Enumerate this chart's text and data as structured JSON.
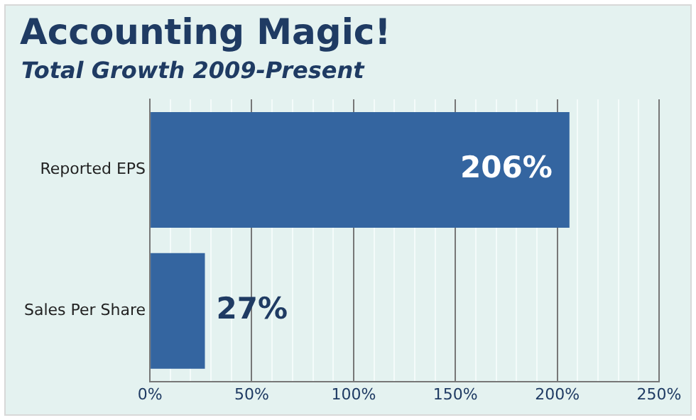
{
  "chart_data": {
    "type": "bar",
    "title": "Accounting Magic!",
    "subtitle": "Total Growth 2009-Present",
    "orientation": "horizontal",
    "categories": [
      "Reported EPS",
      "Sales Per Share"
    ],
    "values": [
      206,
      27
    ],
    "color": "#3465a0",
    "value_labels": [
      "206%",
      "27%"
    ],
    "xlim": [
      0,
      250
    ],
    "xticks": [
      {
        "value": 0,
        "label": "0%"
      },
      {
        "value": 10,
        "label": null
      },
      {
        "value": 20,
        "label": null
      },
      {
        "value": 30,
        "label": null
      },
      {
        "value": 40,
        "label": null
      },
      {
        "value": 50,
        "label": "50%"
      },
      {
        "value": 60,
        "label": null
      },
      {
        "value": 70,
        "label": null
      },
      {
        "value": 80,
        "label": null
      },
      {
        "value": 90,
        "label": null
      },
      {
        "value": 100,
        "label": "100%"
      },
      {
        "value": 110,
        "label": null
      },
      {
        "value": 120,
        "label": null
      },
      {
        "value": 130,
        "label": null
      },
      {
        "value": 140,
        "label": null
      },
      {
        "value": 150,
        "label": "150%"
      },
      {
        "value": 160,
        "label": null
      },
      {
        "value": 170,
        "label": null
      },
      {
        "value": 180,
        "label": null
      },
      {
        "value": 190,
        "label": null
      },
      {
        "value": 200,
        "label": "200%"
      },
      {
        "value": 210,
        "label": null
      },
      {
        "value": 220,
        "label": null
      },
      {
        "value": 230,
        "label": null
      },
      {
        "value": 240,
        "label": null
      },
      {
        "value": 250,
        "label": "250%"
      }
    ],
    "grid": "x",
    "legend": false
  }
}
